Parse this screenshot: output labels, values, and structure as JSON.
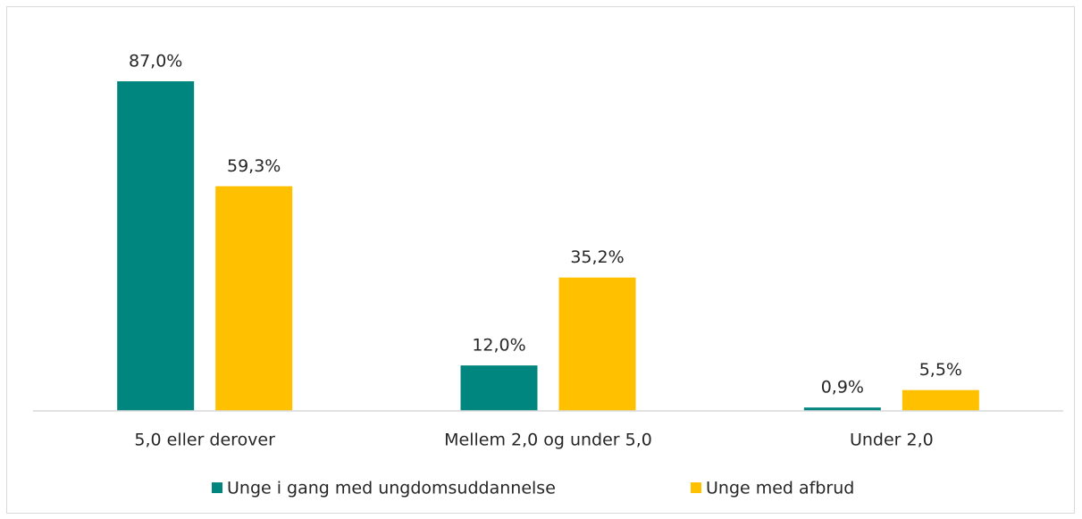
{
  "chart_data": {
    "type": "bar",
    "categories": [
      "5,0 eller derover",
      "Mellem 2,0 og under 5,0",
      "Under 2,0"
    ],
    "series": [
      {
        "name": "Unge i gang med ungdomsuddannelse",
        "color": "#00857f",
        "values": [
          87.0,
          12.0,
          0.9
        ],
        "value_labels": [
          "87,0%",
          "12,0%",
          "0,9%"
        ]
      },
      {
        "name": "Unge med afbrud",
        "color": "#ffc000",
        "values": [
          59.3,
          35.2,
          5.5
        ],
        "value_labels": [
          "59,3%",
          "35,2%",
          "5,5%"
        ]
      }
    ],
    "legend": "bottom"
  }
}
